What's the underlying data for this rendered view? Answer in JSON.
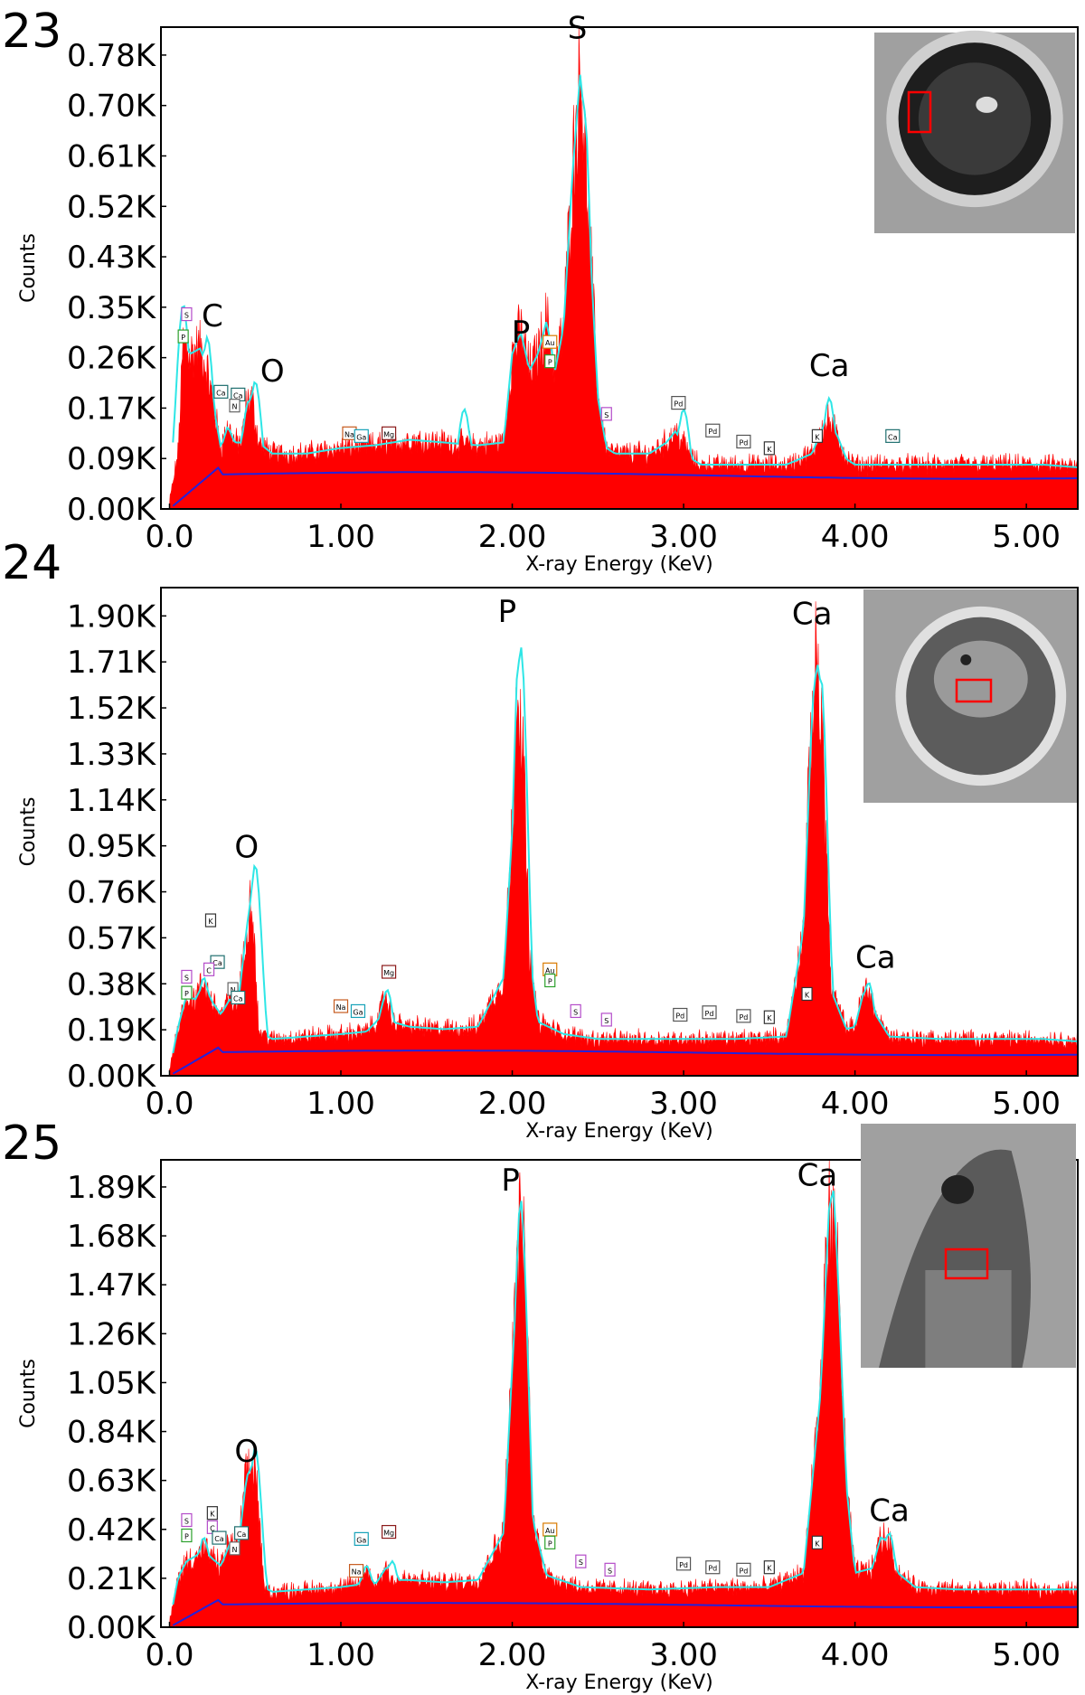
{
  "figure": {
    "panels": [
      "23",
      "24",
      "25"
    ]
  },
  "colors": {
    "spectrum": "#ff0000",
    "fit": "#2ee6e6",
    "background": "#2222dd",
    "frame": "#000000"
  },
  "chart_data": [
    {
      "panel": "23",
      "type": "area",
      "xlabel": "X-ray Energy (KeV)",
      "ylabel": "Counts",
      "xticks": [
        "0.0",
        "1.00",
        "2.00",
        "3.00",
        "4.00",
        "5.00"
      ],
      "yticks": [
        "0.00K",
        "0.09K",
        "0.17K",
        "0.26K",
        "0.35K",
        "0.43K",
        "0.52K",
        "0.61K",
        "0.70K",
        "0.78K"
      ],
      "xlim": [
        -0.05,
        5.3
      ],
      "ylim": [
        0,
        870
      ],
      "series": [
        {
          "x": [
            0.0,
            0.05,
            0.08,
            0.12,
            0.18,
            0.22,
            0.26,
            0.3,
            0.34,
            0.38,
            0.42,
            0.45,
            0.48,
            0.52,
            0.6,
            0.8,
            1.0,
            1.2,
            1.4,
            1.6,
            1.8,
            1.95,
            2.0,
            2.05,
            2.1,
            2.15,
            2.2,
            2.25,
            2.3,
            2.35,
            2.4,
            2.45,
            2.5,
            2.55,
            2.6,
            2.7,
            2.8,
            2.9,
            2.95,
            3.0,
            3.05,
            3.1,
            3.2,
            3.4,
            3.6,
            3.75,
            3.8,
            3.85,
            3.9,
            3.95,
            4.0,
            4.2,
            4.5,
            4.8,
            5.1,
            5.3
          ],
          "y": [
            10,
            100,
            300,
            280,
            290,
            250,
            180,
            110,
            150,
            120,
            120,
            190,
            200,
            120,
            100,
            100,
            110,
            115,
            125,
            120,
            115,
            120,
            280,
            320,
            250,
            280,
            340,
            250,
            330,
            600,
            800,
            500,
            200,
            110,
            100,
            100,
            100,
            120,
            140,
            120,
            90,
            80,
            80,
            80,
            80,
            100,
            140,
            160,
            130,
            90,
            80,
            80,
            80,
            80,
            80,
            75
          ]
        }
      ],
      "fit_peaks": [
        {
          "x": 0.08,
          "y": 370
        },
        {
          "x": 0.22,
          "y": 310
        },
        {
          "x": 0.5,
          "y": 230
        },
        {
          "x": 1.72,
          "y": 180
        },
        {
          "x": 2.05,
          "y": 250
        },
        {
          "x": 2.2,
          "y": 230
        },
        {
          "x": 2.42,
          "y": 720
        },
        {
          "x": 3.0,
          "y": 180
        },
        {
          "x": 3.85,
          "y": 200
        }
      ],
      "peak_labels": [
        {
          "text": "S",
          "x": 2.38,
          "y": 850
        },
        {
          "text": "C",
          "x": 0.25,
          "y": 330
        },
        {
          "text": "O",
          "x": 0.6,
          "y": 230
        },
        {
          "text": "P",
          "x": 2.05,
          "y": 300
        },
        {
          "text": "Ca",
          "x": 3.85,
          "y": 240
        }
      ],
      "element_markers": [
        {
          "text": "S",
          "x": 0.1,
          "y": 350,
          "color": "#b44cc9"
        },
        {
          "text": "P",
          "x": 0.08,
          "y": 310,
          "color": "#2ca02c"
        },
        {
          "text": "Ca",
          "x": 0.3,
          "y": 210,
          "color": "#1f6f6f"
        },
        {
          "text": "Ca",
          "x": 0.4,
          "y": 205,
          "color": "#1f6f6f"
        },
        {
          "text": "N",
          "x": 0.38,
          "y": 185,
          "color": "#666666"
        },
        {
          "text": "Na",
          "x": 1.05,
          "y": 135,
          "color": "#c65a1e"
        },
        {
          "text": "Ga",
          "x": 1.12,
          "y": 130,
          "color": "#17a2b8"
        },
        {
          "text": "Mg",
          "x": 1.28,
          "y": 135,
          "color": "#8b1a1a"
        },
        {
          "text": "Au",
          "x": 2.22,
          "y": 300,
          "color": "#d97a00"
        },
        {
          "text": "P",
          "x": 2.22,
          "y": 265,
          "color": "#2ca02c"
        },
        {
          "text": "S",
          "x": 2.55,
          "y": 170,
          "color": "#b44cc9"
        },
        {
          "text": "Pd",
          "x": 2.97,
          "y": 190,
          "color": "#555555"
        },
        {
          "text": "Pd",
          "x": 3.17,
          "y": 140,
          "color": "#555555"
        },
        {
          "text": "Pd",
          "x": 3.35,
          "y": 120,
          "color": "#555555"
        },
        {
          "text": "K",
          "x": 3.5,
          "y": 108,
          "color": "#333333"
        },
        {
          "text": "K",
          "x": 3.78,
          "y": 130,
          "color": "#333333"
        },
        {
          "text": "Ca",
          "x": 4.22,
          "y": 130,
          "color": "#1f6f6f"
        }
      ],
      "inset_description_box": "red rectangle on left side of hole"
    },
    {
      "panel": "24",
      "type": "area",
      "xlabel": "X-ray Energy (KeV)",
      "ylabel": "Counts",
      "xticks": [
        "0.0",
        "1.00",
        "2.00",
        "3.00",
        "4.00",
        "5.00"
      ],
      "yticks": [
        "0.00K",
        "0.19K",
        "0.38K",
        "0.57K",
        "0.76K",
        "0.95K",
        "1.14K",
        "1.33K",
        "1.52K",
        "1.71K",
        "1.90K"
      ],
      "xlim": [
        -0.05,
        5.3
      ],
      "ylim": [
        0,
        1990
      ],
      "series": [
        {
          "x": [
            0.0,
            0.05,
            0.1,
            0.15,
            0.2,
            0.25,
            0.3,
            0.35,
            0.4,
            0.45,
            0.48,
            0.52,
            0.6,
            0.8,
            1.0,
            1.15,
            1.22,
            1.26,
            1.3,
            1.4,
            1.6,
            1.8,
            1.95,
            2.0,
            2.03,
            2.06,
            2.1,
            2.15,
            2.3,
            2.5,
            2.8,
            3.0,
            3.3,
            3.6,
            3.7,
            3.75,
            3.78,
            3.82,
            3.86,
            3.95,
            4.0,
            4.05,
            4.08,
            4.12,
            4.2,
            4.5,
            4.8,
            5.1,
            5.3
          ],
          "y": [
            20,
            200,
            330,
            310,
            380,
            300,
            250,
            310,
            290,
            600,
            750,
            180,
            150,
            160,
            170,
            180,
            230,
            340,
            220,
            200,
            190,
            200,
            400,
            1000,
            1700,
            1350,
            500,
            220,
            170,
            150,
            150,
            150,
            150,
            160,
            600,
            1500,
            1700,
            1200,
            350,
            190,
            200,
            340,
            360,
            250,
            160,
            150,
            150,
            150,
            140
          ]
        }
      ],
      "fit_peaks": [
        {
          "x": 0.2,
          "y": 400
        },
        {
          "x": 0.5,
          "y": 860
        },
        {
          "x": 1.27,
          "y": 350
        },
        {
          "x": 2.05,
          "y": 1750
        },
        {
          "x": 3.8,
          "y": 1630
        },
        {
          "x": 4.08,
          "y": 380
        }
      ],
      "peak_labels": [
        {
          "text": "P",
          "x": 1.97,
          "y": 1850
        },
        {
          "text": "Ca",
          "x": 3.75,
          "y": 1840
        },
        {
          "text": "O",
          "x": 0.45,
          "y": 890
        },
        {
          "text": "Ca",
          "x": 4.12,
          "y": 440
        }
      ],
      "element_markers": [
        {
          "text": "K",
          "x": 0.24,
          "y": 630,
          "color": "#333333"
        },
        {
          "text": "Ca",
          "x": 0.28,
          "y": 460,
          "color": "#1f6f6f"
        },
        {
          "text": "S",
          "x": 0.1,
          "y": 400,
          "color": "#b44cc9"
        },
        {
          "text": "C",
          "x": 0.23,
          "y": 430,
          "color": "#b44cc9"
        },
        {
          "text": "P",
          "x": 0.1,
          "y": 335,
          "color": "#2ca02c"
        },
        {
          "text": "N",
          "x": 0.37,
          "y": 350,
          "color": "#666666"
        },
        {
          "text": "Ca",
          "x": 0.4,
          "y": 315,
          "color": "#1f6f6f"
        },
        {
          "text": "Na",
          "x": 1.0,
          "y": 280,
          "color": "#c65a1e"
        },
        {
          "text": "Ga",
          "x": 1.1,
          "y": 260,
          "color": "#17a2b8"
        },
        {
          "text": "Mg",
          "x": 1.28,
          "y": 420,
          "color": "#8b1a1a"
        },
        {
          "text": "Au",
          "x": 2.22,
          "y": 430,
          "color": "#d97a00"
        },
        {
          "text": "P",
          "x": 2.22,
          "y": 385,
          "color": "#2ca02c"
        },
        {
          "text": "S",
          "x": 2.37,
          "y": 260,
          "color": "#b44cc9"
        },
        {
          "text": "S",
          "x": 2.55,
          "y": 225,
          "color": "#b44cc9"
        },
        {
          "text": "Pd",
          "x": 2.98,
          "y": 245,
          "color": "#555555"
        },
        {
          "text": "Pd",
          "x": 3.15,
          "y": 255,
          "color": "#555555"
        },
        {
          "text": "Pd",
          "x": 3.35,
          "y": 240,
          "color": "#555555"
        },
        {
          "text": "K",
          "x": 3.5,
          "y": 235,
          "color": "#333333"
        },
        {
          "text": "K",
          "x": 3.72,
          "y": 330,
          "color": "#333333"
        }
      ],
      "inset_description_box": "red rectangle near center of ellipsoid"
    },
    {
      "panel": "25",
      "type": "area",
      "xlabel": "X-ray Energy (KeV)",
      "ylabel": "Counts",
      "xticks": [
        "0.0",
        "1.00",
        "2.00",
        "3.00",
        "4.00",
        "5.00"
      ],
      "yticks": [
        "0.00K",
        "0.21K",
        "0.42K",
        "0.63K",
        "0.84K",
        "1.05K",
        "1.26K",
        "1.47K",
        "1.68K",
        "1.89K"
      ],
      "xlim": [
        -0.05,
        5.3
      ],
      "ylim": [
        0,
        1980
      ],
      "series": [
        {
          "x": [
            0.0,
            0.05,
            0.1,
            0.15,
            0.2,
            0.25,
            0.3,
            0.35,
            0.4,
            0.45,
            0.5,
            0.55,
            0.6,
            0.8,
            1.0,
            1.1,
            1.15,
            1.2,
            1.27,
            1.3,
            1.4,
            1.6,
            1.8,
            1.95,
            2.0,
            2.05,
            2.08,
            2.12,
            2.2,
            2.4,
            2.8,
            3.2,
            3.5,
            3.7,
            3.8,
            3.85,
            3.9,
            3.95,
            4.0,
            4.1,
            4.15,
            4.2,
            4.25,
            4.35,
            4.6,
            4.9,
            5.3
          ],
          "y": [
            20,
            210,
            280,
            300,
            330,
            290,
            260,
            350,
            330,
            640,
            700,
            170,
            150,
            160,
            170,
            180,
            240,
            180,
            260,
            200,
            200,
            190,
            200,
            400,
            1100,
            1750,
            1400,
            450,
            220,
            170,
            160,
            170,
            170,
            230,
            1000,
            1800,
            1500,
            600,
            230,
            250,
            380,
            360,
            230,
            170,
            160,
            160,
            160
          ]
        }
      ],
      "fit_peaks": [
        {
          "x": 0.2,
          "y": 380
        },
        {
          "x": 0.5,
          "y": 760
        },
        {
          "x": 1.15,
          "y": 260
        },
        {
          "x": 1.3,
          "y": 280
        },
        {
          "x": 2.05,
          "y": 1810
        },
        {
          "x": 3.87,
          "y": 1860
        },
        {
          "x": 4.2,
          "y": 400
        }
      ],
      "peak_labels": [
        {
          "text": "P",
          "x": 1.99,
          "y": 1850
        },
        {
          "text": "Ca",
          "x": 3.78,
          "y": 1870
        },
        {
          "text": "O",
          "x": 0.45,
          "y": 700
        },
        {
          "text": "Ca",
          "x": 4.2,
          "y": 450
        }
      ],
      "element_markers": [
        {
          "text": "S",
          "x": 0.1,
          "y": 450,
          "color": "#b44cc9"
        },
        {
          "text": "K",
          "x": 0.25,
          "y": 480,
          "color": "#333333"
        },
        {
          "text": "C",
          "x": 0.25,
          "y": 420,
          "color": "#b44cc9"
        },
        {
          "text": "P",
          "x": 0.1,
          "y": 385,
          "color": "#2ca02c"
        },
        {
          "text": "Ca",
          "x": 0.29,
          "y": 375,
          "color": "#1f6f6f"
        },
        {
          "text": "Ca",
          "x": 0.42,
          "y": 395,
          "color": "#1f6f6f"
        },
        {
          "text": "N",
          "x": 0.38,
          "y": 330,
          "color": "#666666"
        },
        {
          "text": "Ga",
          "x": 1.12,
          "y": 370,
          "color": "#17a2b8"
        },
        {
          "text": "Mg",
          "x": 1.28,
          "y": 400,
          "color": "#8b1a1a"
        },
        {
          "text": "Na",
          "x": 1.09,
          "y": 235,
          "color": "#c65a1e"
        },
        {
          "text": "Au",
          "x": 2.22,
          "y": 410,
          "color": "#d97a00"
        },
        {
          "text": "P",
          "x": 2.22,
          "y": 355,
          "color": "#2ca02c"
        },
        {
          "text": "S",
          "x": 2.4,
          "y": 275,
          "color": "#b44cc9"
        },
        {
          "text": "S",
          "x": 2.57,
          "y": 240,
          "color": "#b44cc9"
        },
        {
          "text": "Pd",
          "x": 3.0,
          "y": 265,
          "color": "#555555"
        },
        {
          "text": "Pd",
          "x": 3.17,
          "y": 250,
          "color": "#555555"
        },
        {
          "text": "Pd",
          "x": 3.35,
          "y": 240,
          "color": "#555555"
        },
        {
          "text": "K",
          "x": 3.5,
          "y": 250,
          "color": "#333333"
        },
        {
          "text": "K",
          "x": 3.78,
          "y": 355,
          "color": "#333333"
        }
      ],
      "inset_description_box": "red rectangle near center of elongated particle"
    }
  ]
}
